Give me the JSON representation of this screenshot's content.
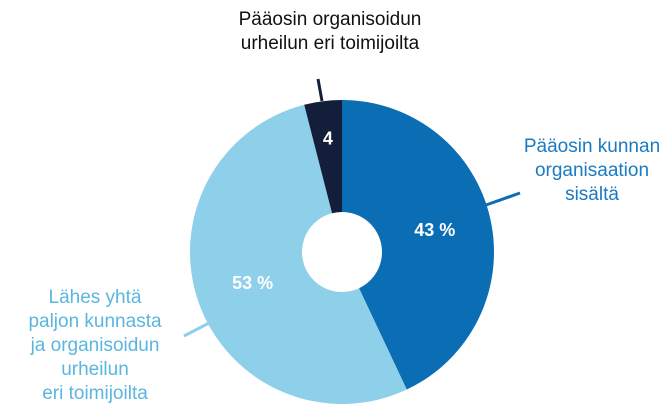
{
  "chart_data": {
    "type": "donut",
    "categories": [
      "Pääosin kunnan\norganisaation\nsisältä",
      "Lähes yhtä\npaljon kunnasta\nja organisoidun\nurheilun\neri toimijoilta",
      "Pääosin organisoidun\nurheilun eri toimijoilta"
    ],
    "values": [
      43,
      53,
      4
    ],
    "value_labels": [
      "43 %",
      "53 %",
      "4"
    ],
    "colors": [
      "#0b6db3",
      "#8ed0ea",
      "#131f3a"
    ]
  }
}
